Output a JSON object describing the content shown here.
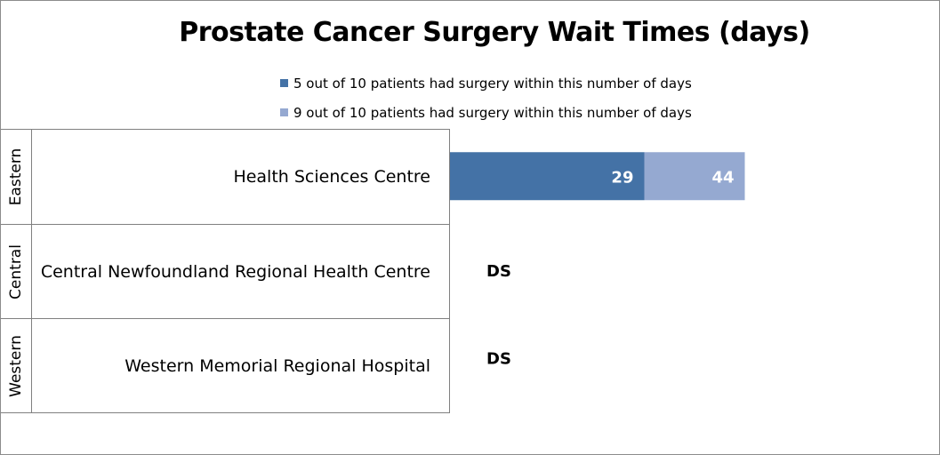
{
  "chart_data": {
    "type": "bar",
    "orientation": "horizontal",
    "stacked": true,
    "title": "Prostate Cancer Surgery Wait Times (days)",
    "legend_position": "top",
    "grid": false,
    "xlim": [
      0,
      73
    ],
    "rows": [
      {
        "region": "Eastern",
        "hospital": "Health Sciences Centre",
        "values": [
          29,
          15
        ],
        "labels": [
          "29",
          "44"
        ],
        "note": ""
      },
      {
        "region": "Central",
        "hospital": "Central Newfoundland Regional Health Centre",
        "values": [
          null,
          null
        ],
        "labels": [
          "",
          ""
        ],
        "note": "DS"
      },
      {
        "region": "Western",
        "hospital": "Western Memorial Regional Hospital",
        "values": [
          null,
          null
        ],
        "labels": [
          "",
          ""
        ],
        "note": "DS"
      }
    ],
    "series": [
      {
        "name": "5 out of 10 patients had surgery within this number of days",
        "color": "#4472a6"
      },
      {
        "name": "9 out of 10 patients had surgery within this number of days",
        "color": "#95a9d1"
      }
    ]
  }
}
